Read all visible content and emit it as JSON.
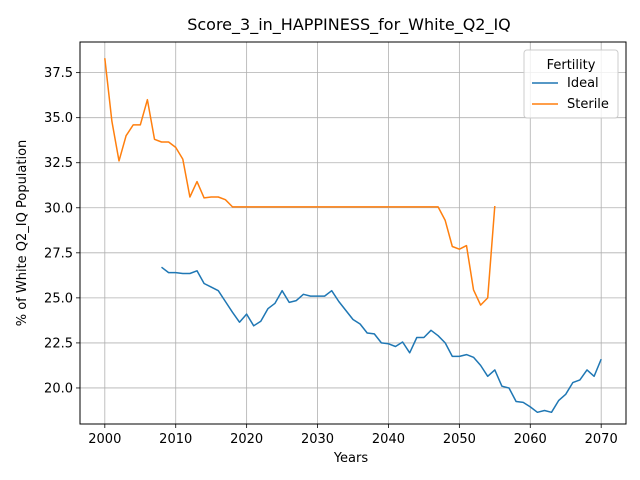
{
  "chart_data": {
    "type": "line",
    "title": "Score_3_in_HAPPINESS_for_White_Q2_IQ",
    "xlabel": "Years",
    "ylabel": "% of White Q2_IQ Population",
    "xlim": [
      1996.5,
      2073.5
    ],
    "ylim": [
      18.0,
      39.2
    ],
    "xticks": [
      2000,
      2010,
      2020,
      2030,
      2040,
      2050,
      2060,
      2070
    ],
    "yticks": [
      20.0,
      22.5,
      25.0,
      27.5,
      30.0,
      32.5,
      35.0,
      37.5
    ],
    "grid": true,
    "legend": {
      "title": "Fertility",
      "placement": "top-right"
    },
    "series": [
      {
        "name": "Ideal",
        "color": "#1f77b4",
        "x": [
          2008,
          2009,
          2010,
          2011,
          2012,
          2013,
          2014,
          2015,
          2016,
          2017,
          2018,
          2019,
          2020,
          2021,
          2022,
          2023,
          2024,
          2025,
          2026,
          2027,
          2028,
          2029,
          2030,
          2031,
          2032,
          2033,
          2034,
          2035,
          2036,
          2037,
          2038,
          2039,
          2040,
          2041,
          2042,
          2043,
          2044,
          2045,
          2046,
          2047,
          2048,
          2049,
          2050,
          2051,
          2052,
          2053,
          2054,
          2055,
          2056,
          2057,
          2058,
          2059,
          2060,
          2061,
          2062,
          2063,
          2064,
          2065,
          2066,
          2067,
          2068,
          2069,
          2070
        ],
        "values": [
          26.7,
          26.4,
          26.4,
          26.35,
          26.35,
          26.5,
          25.8,
          25.6,
          25.4,
          24.8,
          24.2,
          23.65,
          24.1,
          23.45,
          23.7,
          24.4,
          24.7,
          25.4,
          24.75,
          24.85,
          25.2,
          25.1,
          25.1,
          25.1,
          25.4,
          24.8,
          24.3,
          23.8,
          23.55,
          23.05,
          23.0,
          22.5,
          22.45,
          22.3,
          22.55,
          21.95,
          22.8,
          22.8,
          23.2,
          22.9,
          22.5,
          21.75,
          21.75,
          21.85,
          21.7,
          21.25,
          20.65,
          21.0,
          20.1,
          20.0,
          19.25,
          19.2,
          18.95,
          18.65,
          18.75,
          18.65,
          19.3,
          19.65,
          20.3,
          20.45,
          21.0,
          20.65,
          21.6
        ]
      },
      {
        "name": "Sterile",
        "color": "#ff7f0e",
        "x": [
          2000,
          2001,
          2002,
          2003,
          2004,
          2005,
          2006,
          2007,
          2008,
          2009,
          2010,
          2011,
          2012,
          2013,
          2014,
          2015,
          2016,
          2017,
          2018,
          2019,
          2020,
          2021,
          2022,
          2023,
          2024,
          2025,
          2026,
          2027,
          2028,
          2029,
          2030,
          2031,
          2032,
          2033,
          2034,
          2035,
          2036,
          2037,
          2038,
          2039,
          2040,
          2041,
          2042,
          2043,
          2044,
          2045,
          2046,
          2047,
          2048,
          2049,
          2050,
          2051,
          2052,
          2053,
          2054,
          2055
        ],
        "values": [
          38.3,
          34.8,
          32.6,
          34.0,
          34.6,
          34.6,
          36.0,
          33.8,
          33.65,
          33.65,
          33.35,
          32.7,
          30.6,
          31.45,
          30.55,
          30.6,
          30.6,
          30.45,
          30.05,
          30.05,
          30.05,
          30.05,
          30.05,
          30.05,
          30.05,
          30.05,
          30.05,
          30.05,
          30.05,
          30.05,
          30.05,
          30.05,
          30.05,
          30.05,
          30.05,
          30.05,
          30.05,
          30.05,
          30.05,
          30.05,
          30.05,
          30.05,
          30.05,
          30.05,
          30.05,
          30.05,
          30.05,
          30.05,
          29.3,
          27.85,
          27.7,
          27.9,
          25.45,
          24.6,
          25.0,
          30.1
        ]
      }
    ]
  }
}
